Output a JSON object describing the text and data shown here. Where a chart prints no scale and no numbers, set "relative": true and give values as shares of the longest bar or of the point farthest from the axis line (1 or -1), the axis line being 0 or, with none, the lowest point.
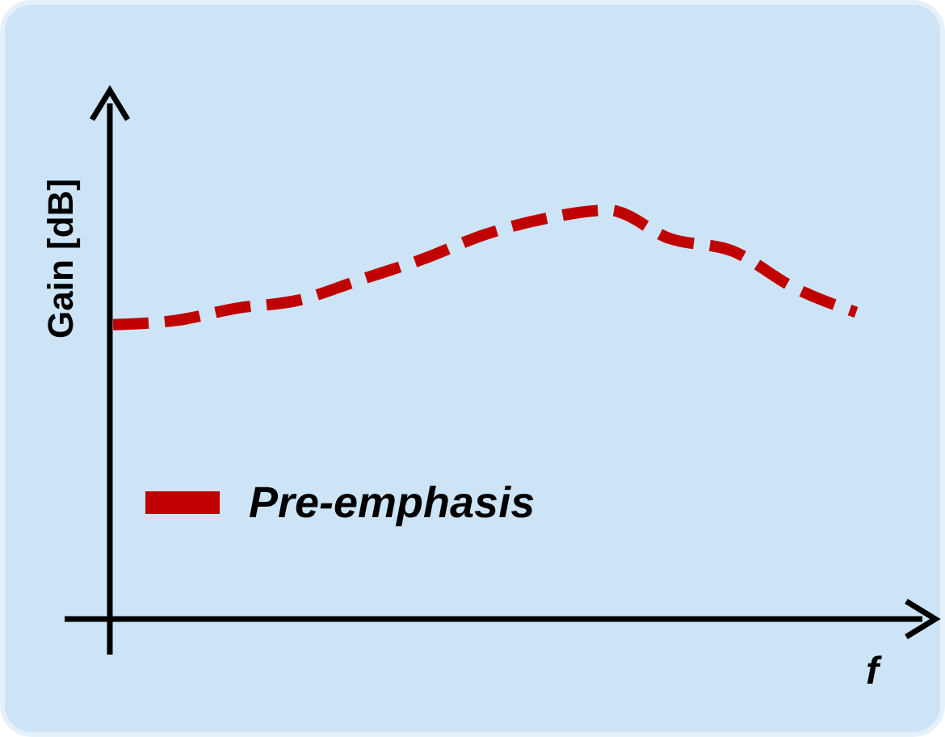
{
  "chart_data": {
    "type": "line",
    "relative": true,
    "xlabel": "f",
    "ylabel": "Gain [dB]",
    "categories": [
      null,
      null,
      null,
      null,
      null,
      null,
      null,
      null,
      null,
      null,
      null,
      null,
      null
    ],
    "series": [
      {
        "name": "Pre-emphasis",
        "color": "#c00000",
        "values": [
          0.72,
          0.73,
          0.76,
          0.78,
          0.83,
          0.88,
          0.94,
          0.98,
          1,
          0.93,
          0.9,
          0.81,
          0.75
        ]
      }
    ],
    "line_style": "dashed",
    "marker": "none",
    "legend": "bottom left"
  }
}
